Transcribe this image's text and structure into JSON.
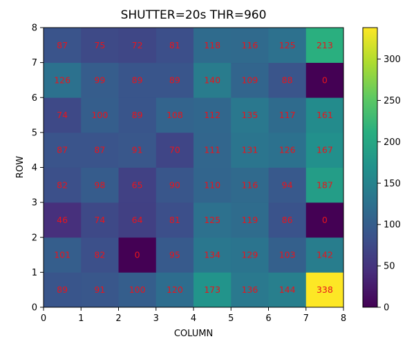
{
  "chart_data": {
    "type": "heatmap",
    "title": "SHUTTER=20s  THR=960",
    "xlabel": "COLUMN",
    "ylabel": "ROW",
    "xlim": [
      0,
      8
    ],
    "ylim": [
      0,
      8
    ],
    "xticks": [
      "0",
      "1",
      "2",
      "3",
      "4",
      "5",
      "6",
      "7",
      "8"
    ],
    "yticks": [
      "0",
      "1",
      "2",
      "3",
      "4",
      "5",
      "6",
      "7",
      "8"
    ],
    "colorscale": "viridis",
    "vmin": 0,
    "vmax": 338,
    "colorbar_ticks": [
      "0",
      "50",
      "100",
      "150",
      "200",
      "250",
      "300"
    ],
    "colorbar_tick_values": [
      0,
      50,
      100,
      150,
      200,
      250,
      300
    ],
    "label_color": "#e8141c",
    "rows": [
      [
        89,
        91,
        100,
        120,
        173,
        136,
        144,
        338
      ],
      [
        101,
        82,
        0,
        95,
        134,
        129,
        103,
        142
      ],
      [
        46,
        74,
        64,
        81,
        125,
        119,
        86,
        0
      ],
      [
        82,
        98,
        65,
        90,
        110,
        116,
        94,
        187
      ],
      [
        87,
        87,
        91,
        70,
        111,
        131,
        126,
        167
      ],
      [
        74,
        100,
        89,
        108,
        112,
        135,
        117,
        161
      ],
      [
        126,
        99,
        89,
        89,
        140,
        109,
        88,
        0
      ],
      [
        87,
        75,
        72,
        81,
        118,
        116,
        125,
        213
      ]
    ]
  }
}
